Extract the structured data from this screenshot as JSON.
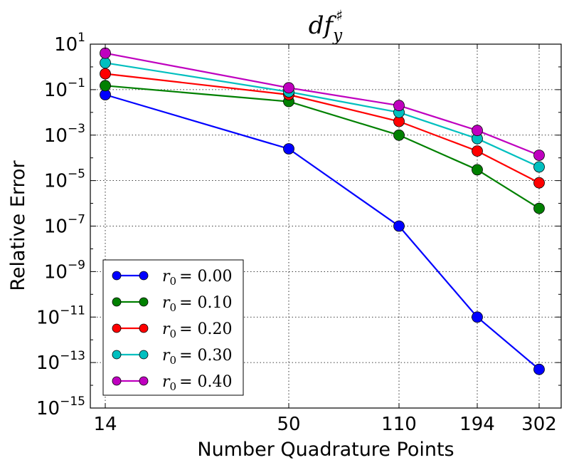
{
  "chart_data": {
    "type": "line",
    "title": "df",
    "title_superscript": "♯",
    "title_subscript": "y",
    "xlabel": "Number Quadrature Points",
    "ylabel": "Relative Error",
    "yscale": "log",
    "ylim_exponents": [
      -15,
      1
    ],
    "x": [
      14,
      50,
      110,
      194,
      302
    ],
    "x_tick_labels": [
      "14",
      "50",
      "110",
      "194",
      "302"
    ],
    "y_tick_labels": [
      {
        "base": "10",
        "exp": "1"
      },
      {
        "base": "10",
        "exp": "−1"
      },
      {
        "base": "10",
        "exp": "−3"
      },
      {
        "base": "10",
        "exp": "−5"
      },
      {
        "base": "10",
        "exp": "−7"
      },
      {
        "base": "10",
        "exp": "−9"
      },
      {
        "base": "10",
        "exp": "−11"
      },
      {
        "base": "10",
        "exp": "−13"
      },
      {
        "base": "10",
        "exp": "−15"
      }
    ],
    "grid": true,
    "legend_position": "lower-left",
    "series": [
      {
        "name": "r0 = 0.00",
        "legend_label": "= 0.00",
        "color": "#0000ff",
        "values": [
          0.06,
          0.00025,
          1e-07,
          1e-11,
          5e-14
        ]
      },
      {
        "name": "r0 = 0.10",
        "legend_label": "= 0.10",
        "color": "#008000",
        "values": [
          0.15,
          0.03,
          0.001,
          3e-05,
          6e-07
        ]
      },
      {
        "name": "r0 = 0.20",
        "legend_label": "= 0.20",
        "color": "#ff0000",
        "values": [
          0.5,
          0.06,
          0.004,
          0.0002,
          8e-06
        ]
      },
      {
        "name": "r0 = 0.30",
        "legend_label": "= 0.30",
        "color": "#00bfbf",
        "values": [
          1.5,
          0.08,
          0.01,
          0.0007,
          4e-05
        ]
      },
      {
        "name": "r0 = 0.40",
        "legend_label": "= 0.40",
        "color": "#bf00bf",
        "values": [
          4.0,
          0.12,
          0.02,
          0.0016,
          0.00013
        ]
      }
    ],
    "legend_symbol": {
      "letter": "r",
      "subscript": "0"
    }
  }
}
